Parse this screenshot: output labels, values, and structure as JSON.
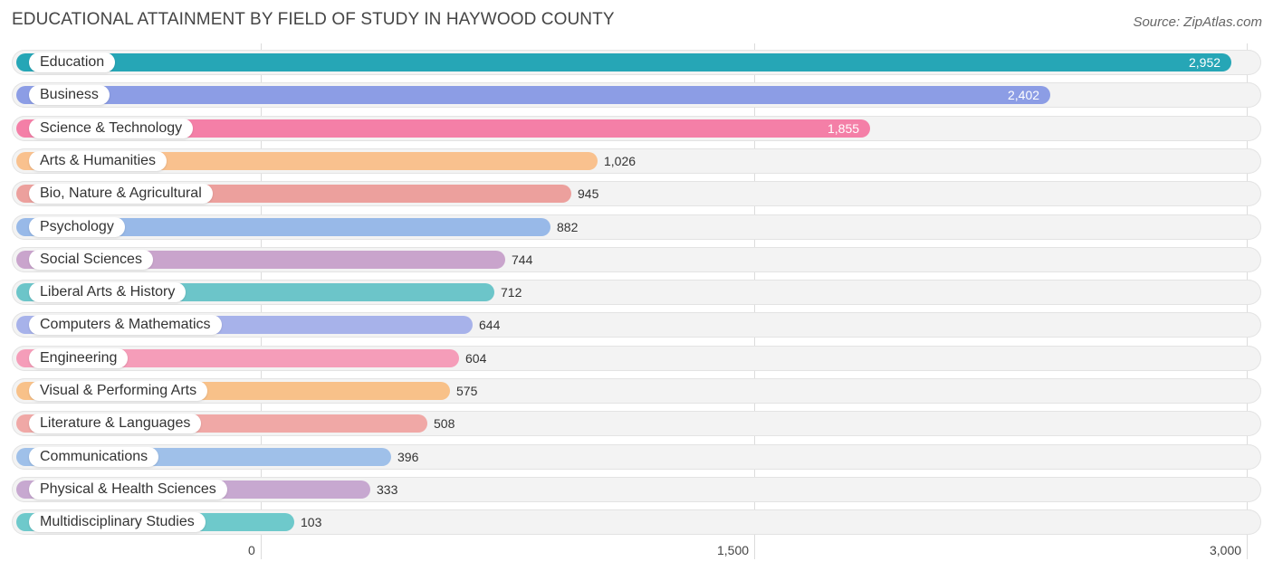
{
  "title": "EDUCATIONAL ATTAINMENT BY FIELD OF STUDY IN HAYWOOD COUNTY",
  "source": "Source: ZipAtlas.com",
  "chart_data": {
    "type": "bar",
    "orientation": "horizontal",
    "title": "EDUCATIONAL ATTAINMENT BY FIELD OF STUDY IN HAYWOOD COUNTY",
    "xlabel": "",
    "ylabel": "",
    "xlim": [
      0,
      3000
    ],
    "ticks": [
      {
        "value": 0,
        "label": "0"
      },
      {
        "value": 1500,
        "label": "1,500"
      },
      {
        "value": 3000,
        "label": "3,000"
      }
    ],
    "grid": true,
    "categories": [
      "Education",
      "Business",
      "Science & Technology",
      "Arts & Humanities",
      "Bio, Nature & Agricultural",
      "Psychology",
      "Social Sciences",
      "Liberal Arts & History",
      "Computers & Mathematics",
      "Engineering",
      "Visual & Performing Arts",
      "Literature & Languages",
      "Communications",
      "Physical & Health Sciences",
      "Multidisciplinary Studies"
    ],
    "values": [
      2952,
      2402,
      1855,
      1026,
      945,
      882,
      744,
      712,
      644,
      604,
      575,
      508,
      396,
      333,
      103
    ],
    "value_labels": [
      "2,952",
      "2,402",
      "1,855",
      "1,026",
      "945",
      "882",
      "744",
      "712",
      "644",
      "604",
      "575",
      "508",
      "396",
      "333",
      "103"
    ],
    "colors": [
      "#26a6b6",
      "#8c9de5",
      "#f47fa7",
      "#f9c18e",
      "#eca09d",
      "#98b9e8",
      "#c9a4cc",
      "#6cc5c9",
      "#a7b2ea",
      "#f59db9",
      "#f8c189",
      "#f0a8a6",
      "#9fc0e9",
      "#c7a8d0",
      "#6ec9cb"
    ]
  }
}
